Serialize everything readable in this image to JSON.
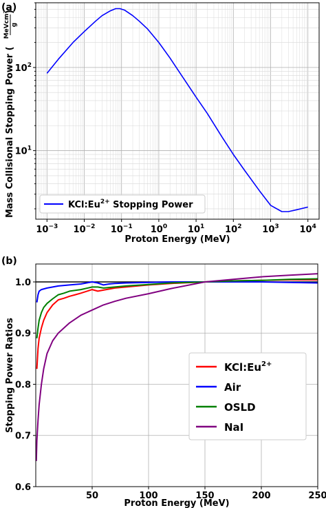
{
  "chart_data": [
    {
      "panel_label": "(a)",
      "type": "line",
      "xscale": "log",
      "yscale": "log",
      "xlabel": "Proton Energy (MeV)",
      "ylabel_main": "Mass Collisional Stopping Power (",
      "ylabel_frac_num": "MeVcm²",
      "ylabel_frac_den": "g",
      "ylabel_close": ")",
      "xlim": [
        0.0005,
        20000
      ],
      "ylim": [
        1.5,
        600
      ],
      "xtick_values": [
        0.001,
        0.01,
        0.1,
        1,
        10,
        100,
        1000,
        10000
      ],
      "xticks": [
        {
          "base": "10",
          "exp": "−3"
        },
        {
          "base": "10",
          "exp": "−2"
        },
        {
          "base": "10",
          "exp": "−1"
        },
        {
          "base": "10",
          "exp": "0"
        },
        {
          "base": "10",
          "exp": "1"
        },
        {
          "base": "10",
          "exp": "2"
        },
        {
          "base": "10",
          "exp": "3"
        },
        {
          "base": "10",
          "exp": "4"
        }
      ],
      "ytick_values": [
        10,
        100
      ],
      "yticks": [
        {
          "base": "10",
          "exp": "1"
        },
        {
          "base": "10",
          "exp": "2"
        }
      ],
      "grid": true,
      "legend_position": "lower-left",
      "series": [
        {
          "name_main": "KCl:Eu",
          "name_sup": "2+",
          "name_rest": " Stopping Power",
          "color": "#0000ff",
          "x": [
            0.001,
            0.002,
            0.005,
            0.01,
            0.02,
            0.03,
            0.05,
            0.07,
            0.09,
            0.12,
            0.2,
            0.3,
            0.5,
            1,
            2,
            5,
            10,
            20,
            50,
            100,
            200,
            500,
            1000,
            2000,
            3000,
            5000,
            10000
          ],
          "y": [
            85,
            125,
            200,
            270,
            360,
            420,
            480,
            510,
            510,
            490,
            420,
            360,
            290,
            200,
            130,
            70,
            44,
            28,
            14.5,
            9,
            5.8,
            3.3,
            2.2,
            1.85,
            1.85,
            1.95,
            2.1
          ]
        }
      ]
    },
    {
      "panel_label": "(b)",
      "type": "line",
      "xlabel": "Proton Energy (MeV)",
      "ylabel": "Stopping Power Ratios",
      "xlim": [
        0,
        250
      ],
      "ylim": [
        0.6,
        1.035
      ],
      "xticks": [
        50,
        100,
        150,
        200,
        250
      ],
      "yticks": [
        0.6,
        0.7,
        0.8,
        0.9,
        1.0
      ],
      "ytick_labels": [
        "0.6",
        "0.7",
        "0.8",
        "0.9",
        "1.0"
      ],
      "grid": true,
      "reference_line": 1.0,
      "legend_position": "center-right",
      "series": [
        {
          "name_main": "KCl:Eu",
          "name_sup": "2+",
          "color": "#ff0000",
          "x": [
            1,
            2,
            3,
            5,
            7,
            10,
            15,
            20,
            25,
            30,
            35,
            40,
            50,
            55,
            60,
            70,
            80,
            100,
            120,
            150,
            175,
            200,
            225,
            250
          ],
          "y": [
            0.83,
            0.87,
            0.89,
            0.91,
            0.925,
            0.94,
            0.955,
            0.965,
            0.968,
            0.972,
            0.975,
            0.978,
            0.985,
            0.982,
            0.984,
            0.988,
            0.99,
            0.994,
            0.997,
            1.0,
            1.002,
            1.003,
            1.004,
            1.004
          ]
        },
        {
          "name_main": "Air",
          "name_sup": "",
          "color": "#0000ff",
          "x": [
            1,
            2,
            3,
            5,
            10,
            15,
            20,
            30,
            40,
            45,
            50,
            55,
            60,
            65,
            70,
            80,
            100,
            120,
            150,
            175,
            200,
            225,
            250
          ],
          "y": [
            0.96,
            0.975,
            0.982,
            0.985,
            0.988,
            0.99,
            0.992,
            0.994,
            0.996,
            0.998,
            1.0,
            0.998,
            0.994,
            0.996,
            0.997,
            0.998,
            0.999,
            1.0,
            1.0,
            1.0,
            1.0,
            0.999,
            0.998
          ]
        },
        {
          "name_main": "OSLD",
          "name_sup": "",
          "color": "#008000",
          "x": [
            1,
            2,
            3,
            5,
            7,
            10,
            15,
            20,
            25,
            30,
            40,
            50,
            55,
            60,
            70,
            80,
            100,
            120,
            150,
            175,
            200,
            225,
            250
          ],
          "y": [
            0.89,
            0.91,
            0.925,
            0.94,
            0.95,
            0.958,
            0.967,
            0.975,
            0.978,
            0.982,
            0.985,
            0.99,
            0.99,
            0.988,
            0.99,
            0.992,
            0.995,
            0.998,
            1.0,
            1.002,
            1.003,
            1.005,
            1.006
          ]
        },
        {
          "name_main": "NaI",
          "name_sup": "",
          "color": "#800080",
          "x": [
            0.5,
            1,
            2,
            3,
            5,
            7,
            10,
            15,
            20,
            25,
            30,
            40,
            50,
            60,
            70,
            80,
            100,
            120,
            150,
            175,
            200,
            225,
            250
          ],
          "y": [
            0.65,
            0.69,
            0.73,
            0.76,
            0.8,
            0.83,
            0.86,
            0.885,
            0.9,
            0.91,
            0.92,
            0.935,
            0.945,
            0.955,
            0.962,
            0.968,
            0.977,
            0.987,
            1.0,
            1.005,
            1.01,
            1.013,
            1.016
          ]
        }
      ]
    }
  ]
}
